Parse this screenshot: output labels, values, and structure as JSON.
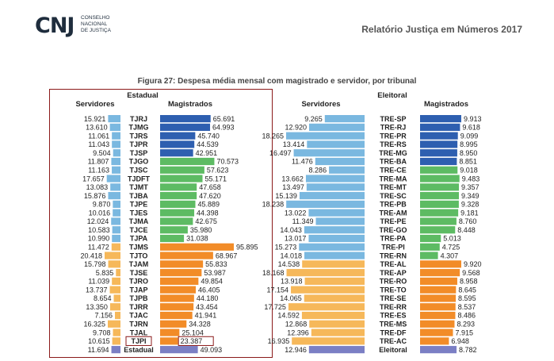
{
  "header": {
    "logo_mark": "CNJ",
    "logo_text": [
      "Conselho",
      "Nacional",
      "de Justiça"
    ],
    "report_title": "Relatório Justiça em Números 2017"
  },
  "figure_title": "Figura 27: Despesa média mensal com magistrado e servidor, por tribunal",
  "colors": {
    "dark_blue": "#2e5fb0",
    "light_blue": "#7ab8e0",
    "green": "#5dbb63",
    "orange": "#f28c28",
    "light_orange": "#f6b85a",
    "purple": "#7b7fc4",
    "frame": "#8b1a1a"
  },
  "chart_data": [
    {
      "type": "bar",
      "panel_title": "Estadual",
      "left_header": "Servidores",
      "right_header": "Magistrados",
      "series": [
        {
          "name": "Servidores",
          "side": "left"
        },
        {
          "name": "Magistrados",
          "side": "right"
        }
      ],
      "rows": [
        {
          "label": "TJRJ",
          "servidores": 15.921,
          "magistrados": 65.691,
          "group": "blue",
          "servidores_text": "15.921",
          "magistrados_text": "65.691"
        },
        {
          "label": "TJMG",
          "servidores": 13.61,
          "magistrados": 64.993,
          "group": "blue",
          "servidores_text": "13.610",
          "magistrados_text": "64.993"
        },
        {
          "label": "TJRS",
          "servidores": 11.061,
          "magistrados": 45.74,
          "group": "blue",
          "servidores_text": "11.061",
          "magistrados_text": "45.740"
        },
        {
          "label": "TJPR",
          "servidores": 11.043,
          "magistrados": 44.539,
          "group": "blue",
          "servidores_text": "11.043",
          "magistrados_text": "44.539"
        },
        {
          "label": "TJSP",
          "servidores": 9.504,
          "magistrados": 42.951,
          "group": "blue",
          "servidores_text": "9.504",
          "magistrados_text": "42.951"
        },
        {
          "label": "TJGO",
          "servidores": 11.807,
          "magistrados": 70.573,
          "group": "green",
          "servidores_text": "11.807",
          "magistrados_text": "70.573"
        },
        {
          "label": "TJSC",
          "servidores": 11.163,
          "magistrados": 57.623,
          "group": "green",
          "servidores_text": "11.163",
          "magistrados_text": "57.623"
        },
        {
          "label": "TJDFT",
          "servidores": 17.657,
          "magistrados": 55.171,
          "group": "green",
          "servidores_text": "17.657",
          "magistrados_text": "55.171"
        },
        {
          "label": "TJMT",
          "servidores": 13.083,
          "magistrados": 47.658,
          "group": "green",
          "servidores_text": "13.083",
          "magistrados_text": "47.658"
        },
        {
          "label": "TJBA",
          "servidores": 15.876,
          "magistrados": 47.62,
          "group": "green",
          "servidores_text": "15.876",
          "magistrados_text": "47.620"
        },
        {
          "label": "TJPE",
          "servidores": 9.87,
          "magistrados": 45.889,
          "group": "green",
          "servidores_text": "9.870",
          "magistrados_text": "45.889"
        },
        {
          "label": "TJES",
          "servidores": 10.016,
          "magistrados": 44.398,
          "group": "green",
          "servidores_text": "10.016",
          "magistrados_text": "44.398"
        },
        {
          "label": "TJMA",
          "servidores": 12.024,
          "magistrados": 42.675,
          "group": "green",
          "servidores_text": "12.024",
          "magistrados_text": "42.675"
        },
        {
          "label": "TJCE",
          "servidores": 10.583,
          "magistrados": 35.98,
          "group": "green",
          "servidores_text": "10.583",
          "magistrados_text": "35.980"
        },
        {
          "label": "TJPA",
          "servidores": 10.99,
          "magistrados": 31.038,
          "group": "green",
          "servidores_text": "10.990",
          "magistrados_text": "31.038"
        },
        {
          "label": "TJMS",
          "servidores": 11.472,
          "magistrados": 95.895,
          "group": "orange",
          "servidores_text": "11.472",
          "magistrados_text": "95.895"
        },
        {
          "label": "TJTO",
          "servidores": 20.418,
          "magistrados": 68.967,
          "group": "orange",
          "servidores_text": "20.418",
          "magistrados_text": "68.967"
        },
        {
          "label": "TJAM",
          "servidores": 15.798,
          "magistrados": 55.833,
          "group": "orange",
          "servidores_text": "15.798",
          "magistrados_text": "55.833"
        },
        {
          "label": "TJSE",
          "servidores": 5.835,
          "magistrados": 53.987,
          "group": "orange",
          "servidores_text": "5.835",
          "magistrados_text": "53.987"
        },
        {
          "label": "TJRO",
          "servidores": 11.039,
          "magistrados": 49.854,
          "group": "orange",
          "servidores_text": "11.039",
          "magistrados_text": "49.854"
        },
        {
          "label": "TJAP",
          "servidores": 13.737,
          "magistrados": 46.405,
          "group": "orange",
          "servidores_text": "13.737",
          "magistrados_text": "46.405"
        },
        {
          "label": "TJPB",
          "servidores": 8.654,
          "magistrados": 44.18,
          "group": "orange",
          "servidores_text": "8.654",
          "magistrados_text": "44.180"
        },
        {
          "label": "TJRR",
          "servidores": 13.35,
          "magistrados": 43.454,
          "group": "orange",
          "servidores_text": "13.350",
          "magistrados_text": "43.454"
        },
        {
          "label": "TJAC",
          "servidores": 7.156,
          "magistrados": 41.941,
          "group": "orange",
          "servidores_text": "7.156",
          "magistrados_text": "41.941"
        },
        {
          "label": "TJRN",
          "servidores": 16.325,
          "magistrados": 34.328,
          "group": "orange",
          "servidores_text": "16.325",
          "magistrados_text": "34.328"
        },
        {
          "label": "TJAL",
          "servidores": 9.708,
          "magistrados": 25.104,
          "group": "orange",
          "servidores_text": "9.708",
          "magistrados_text": "25.104"
        },
        {
          "label": "TJPI",
          "servidores": 10.615,
          "magistrados": 23.387,
          "group": "orange",
          "servidores_text": "10.615",
          "magistrados_text": "23.387",
          "boxed": true
        },
        {
          "label": "Estadual",
          "servidores": 11.694,
          "magistrados": 49.093,
          "group": "total",
          "servidores_text": "11.694",
          "magistrados_text": "49.093"
        }
      ]
    },
    {
      "type": "bar",
      "panel_title": "Eleitoral",
      "left_header": "Servidores",
      "right_header": "Magistrados",
      "series": [
        {
          "name": "Servidores",
          "side": "left"
        },
        {
          "name": "Magistrados",
          "side": "right"
        }
      ],
      "rows": [
        {
          "label": "TRE-SP",
          "servidores": 9.265,
          "magistrados": 9.913,
          "group": "blue",
          "servidores_text": "9.265",
          "magistrados_text": "9.913"
        },
        {
          "label": "TRE-RJ",
          "servidores": 12.92,
          "magistrados": 9.618,
          "group": "blue",
          "servidores_text": "12.920",
          "magistrados_text": "9.618"
        },
        {
          "label": "TRE-PR",
          "servidores": 18.265,
          "magistrados": 9.099,
          "group": "blue",
          "servidores_text": "18.265",
          "magistrados_text": "9.099"
        },
        {
          "label": "TRE-RS",
          "servidores": 13.414,
          "magistrados": 8.995,
          "group": "blue",
          "servidores_text": "13.414",
          "magistrados_text": "8.995"
        },
        {
          "label": "TRE-MG",
          "servidores": 16.497,
          "magistrados": 8.95,
          "group": "blue",
          "servidores_text": "16.497",
          "magistrados_text": "8.950"
        },
        {
          "label": "TRE-BA",
          "servidores": 11.476,
          "magistrados": 8.851,
          "group": "blue",
          "servidores_text": "11.476",
          "magistrados_text": "8.851"
        },
        {
          "label": "TRE-CE",
          "servidores": 8.286,
          "magistrados": 9.018,
          "group": "green",
          "servidores_text": "8.286",
          "magistrados_text": "9.018"
        },
        {
          "label": "TRE-MA",
          "servidores": 13.662,
          "magistrados": 9.483,
          "group": "green",
          "servidores_text": "13.662",
          "magistrados_text": "9.483"
        },
        {
          "label": "TRE-MT",
          "servidores": 13.497,
          "magistrados": 9.357,
          "group": "green",
          "servidores_text": "13.497",
          "magistrados_text": "9.357"
        },
        {
          "label": "TRE-SC",
          "servidores": 15.139,
          "magistrados": 9.349,
          "group": "green",
          "servidores_text": "15.139",
          "magistrados_text": "9.349"
        },
        {
          "label": "TRE-PB",
          "servidores": 18.238,
          "magistrados": 9.328,
          "group": "green",
          "servidores_text": "18.238",
          "magistrados_text": "9.328"
        },
        {
          "label": "TRE-AM",
          "servidores": 13.022,
          "magistrados": 9.181,
          "group": "green",
          "servidores_text": "13.022",
          "magistrados_text": "9.181"
        },
        {
          "label": "TRE-PE",
          "servidores": 11.349,
          "magistrados": 8.76,
          "group": "green",
          "servidores_text": "11.349",
          "magistrados_text": "8.760"
        },
        {
          "label": "TRE-GO",
          "servidores": 14.043,
          "magistrados": 8.448,
          "group": "green",
          "servidores_text": "14.043",
          "magistrados_text": "8.448"
        },
        {
          "label": "TRE-PA",
          "servidores": 13.017,
          "magistrados": 5.013,
          "group": "green",
          "servidores_text": "13.017",
          "magistrados_text": "5.013"
        },
        {
          "label": "TRE-PI",
          "servidores": 15.273,
          "magistrados": 4.725,
          "group": "green",
          "servidores_text": "15.273",
          "magistrados_text": "4.725"
        },
        {
          "label": "TRE-RN",
          "servidores": 14.018,
          "magistrados": 4.307,
          "group": "green",
          "servidores_text": "14.018",
          "magistrados_text": "4.307"
        },
        {
          "label": "TRE-AL",
          "servidores": 14.538,
          "magistrados": 9.92,
          "group": "orange",
          "servidores_text": "14.538",
          "magistrados_text": "9.920"
        },
        {
          "label": "TRE-AP",
          "servidores": 18.168,
          "magistrados": 9.568,
          "group": "orange",
          "servidores_text": "18.168",
          "magistrados_text": "9.568"
        },
        {
          "label": "TRE-RO",
          "servidores": 13.918,
          "magistrados": 8.958,
          "group": "orange",
          "servidores_text": "13.918",
          "magistrados_text": "8.958"
        },
        {
          "label": "TRE-TO",
          "servidores": 17.154,
          "magistrados": 8.645,
          "group": "orange",
          "servidores_text": "17.154",
          "magistrados_text": "8.645"
        },
        {
          "label": "TRE-SE",
          "servidores": 14.065,
          "magistrados": 8.595,
          "group": "orange",
          "servidores_text": "14.065",
          "magistrados_text": "8.595"
        },
        {
          "label": "TRE-RR",
          "servidores": 17.725,
          "magistrados": 8.537,
          "group": "orange",
          "servidores_text": "17.725",
          "magistrados_text": "8.537"
        },
        {
          "label": "TRE-ES",
          "servidores": 14.592,
          "magistrados": 8.486,
          "group": "orange",
          "servidores_text": "14.592",
          "magistrados_text": "8.486"
        },
        {
          "label": "TRE-MS",
          "servidores": 12.868,
          "magistrados": 8.293,
          "group": "orange",
          "servidores_text": "12.868",
          "magistrados_text": "8.293"
        },
        {
          "label": "TRE-DF",
          "servidores": 12.396,
          "magistrados": 7.915,
          "group": "orange",
          "servidores_text": "12.396",
          "magistrados_text": "7.915"
        },
        {
          "label": "TRE-AC",
          "servidores": 16.935,
          "magistrados": 6.948,
          "group": "orange",
          "servidores_text": "16.935",
          "magistrados_text": "6.948"
        },
        {
          "label": "Eleitoral",
          "servidores": 12.946,
          "magistrados": 8.782,
          "group": "total",
          "servidores_text": "12.946",
          "magistrados_text": "8.782"
        }
      ]
    }
  ]
}
